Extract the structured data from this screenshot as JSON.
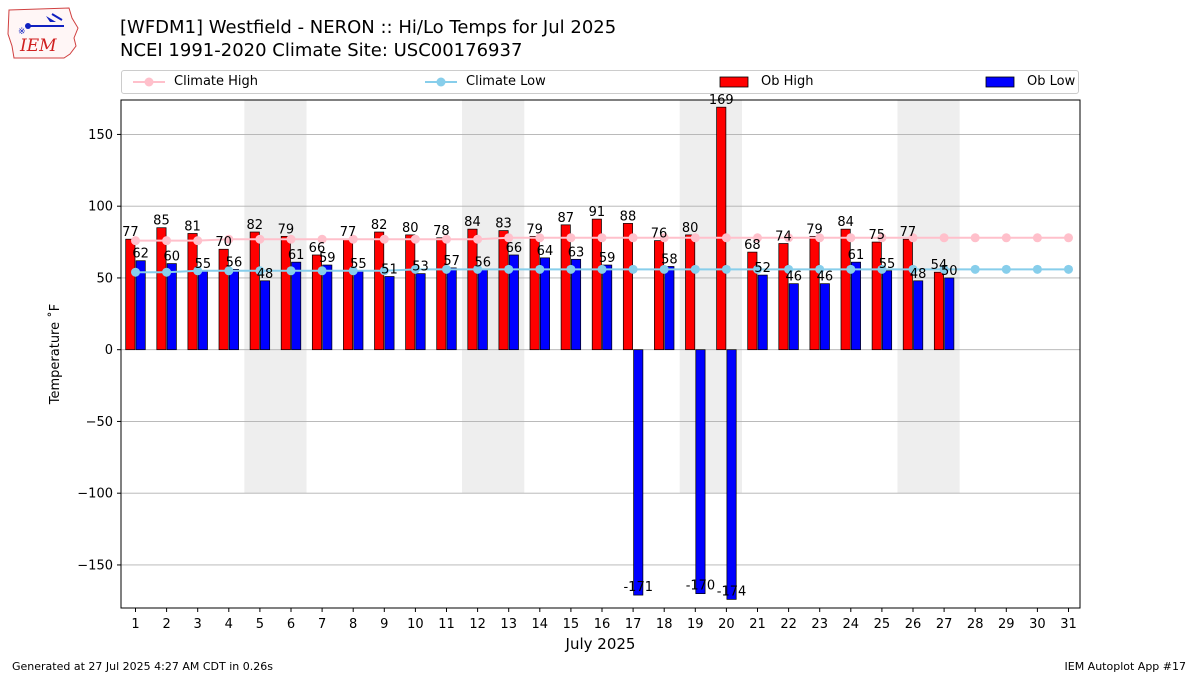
{
  "title_line1": "[WFDM1] Westfield - NERON :: Hi/Lo Temps for Jul 2025",
  "title_line2": "NCEI 1991-2020 Climate Site: USC00176937",
  "logo_text": "IEM",
  "footer_left": "Generated at 27 Jul 2025 4:27 AM CDT in 0.26s",
  "footer_right": "IEM Autoplot App #17",
  "legend": {
    "climate_high": "Climate High",
    "climate_low": "Climate Low",
    "ob_high": "Ob High",
    "ob_low": "Ob Low"
  },
  "colors": {
    "ob_high": "#ff0000",
    "ob_low": "#0000ff",
    "climate_high": "#ffc0cb",
    "climate_low": "#87ceeb",
    "weekend_band": "#eeeeee",
    "grid": "#b0b0b0"
  },
  "chart_data": {
    "type": "bar",
    "xlabel": "July 2025",
    "ylabel": "Temperature ˚F",
    "ylim": [
      -180,
      174
    ],
    "yticks": [
      -150,
      -100,
      -50,
      0,
      50,
      100,
      150
    ],
    "grid": "horizontal",
    "legend_position": "top",
    "days": [
      1,
      2,
      3,
      4,
      5,
      6,
      7,
      8,
      9,
      10,
      11,
      12,
      13,
      14,
      15,
      16,
      17,
      18,
      19,
      20,
      21,
      22,
      23,
      24,
      25,
      26,
      27,
      28,
      29,
      30,
      31
    ],
    "weekend_bands": [
      [
        5,
        6
      ],
      [
        12,
        13
      ],
      [
        19,
        20
      ],
      [
        26,
        27
      ]
    ],
    "series": [
      {
        "name": "Ob High",
        "type": "bar",
        "values": [
          77,
          85,
          81,
          70,
          82,
          79,
          66,
          77,
          82,
          80,
          78,
          84,
          83,
          79,
          87,
          91,
          88,
          76,
          80,
          169,
          68,
          74,
          79,
          84,
          75,
          77,
          54,
          null,
          null,
          null,
          null
        ]
      },
      {
        "name": "Ob Low",
        "type": "bar",
        "values": [
          62,
          60,
          55,
          56,
          48,
          61,
          59,
          55,
          51,
          53,
          57,
          56,
          66,
          64,
          63,
          59,
          -171,
          58,
          -170,
          -174,
          52,
          46,
          46,
          61,
          55,
          48,
          50,
          null,
          null,
          null,
          null
        ]
      },
      {
        "name": "Climate High",
        "type": "line",
        "values": [
          76,
          76,
          76,
          77,
          77,
          77,
          77,
          77,
          77,
          77,
          77,
          77,
          78,
          78,
          78,
          78,
          78,
          78,
          78,
          78,
          78,
          78,
          78,
          78,
          78,
          78,
          78,
          78,
          78,
          78,
          78
        ]
      },
      {
        "name": "Climate Low",
        "type": "line",
        "values": [
          54,
          54,
          55,
          55,
          55,
          55,
          55,
          55,
          55,
          56,
          56,
          56,
          56,
          56,
          56,
          56,
          56,
          56,
          56,
          56,
          56,
          56,
          56,
          56,
          56,
          56,
          56,
          56,
          56,
          56,
          56
        ]
      }
    ]
  }
}
